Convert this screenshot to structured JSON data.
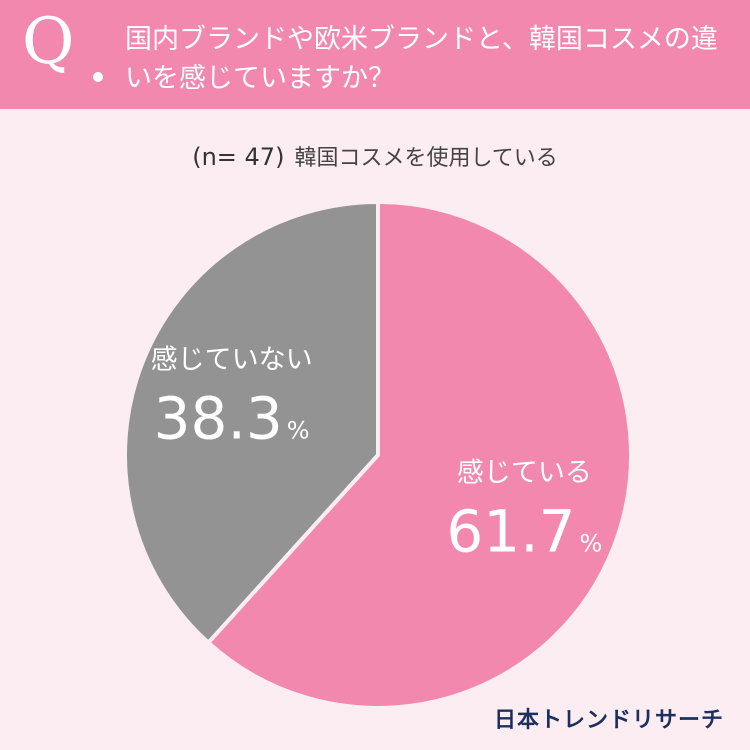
{
  "header": {
    "q_mark": "Q",
    "question": "国内ブランドや欧米ブランドと、韓国コスメの違いを感じていますか？"
  },
  "subtitle": {
    "sample": "(n= 47)",
    "group": "韓国コスメを使用している"
  },
  "chart_data": {
    "type": "pie",
    "slices": [
      {
        "label": "感じている",
        "value": 61.7,
        "display": "61.7",
        "unit": "%",
        "color": "#f288ae"
      },
      {
        "label": "感じていない",
        "value": 38.3,
        "display": "38.3",
        "unit": "%",
        "color": "#939393"
      }
    ],
    "start": "12 o'clock",
    "direction": "clockwise",
    "separator_color": "#fcedf2"
  },
  "brand": {
    "logo": "日本トレンドリサーチ"
  }
}
